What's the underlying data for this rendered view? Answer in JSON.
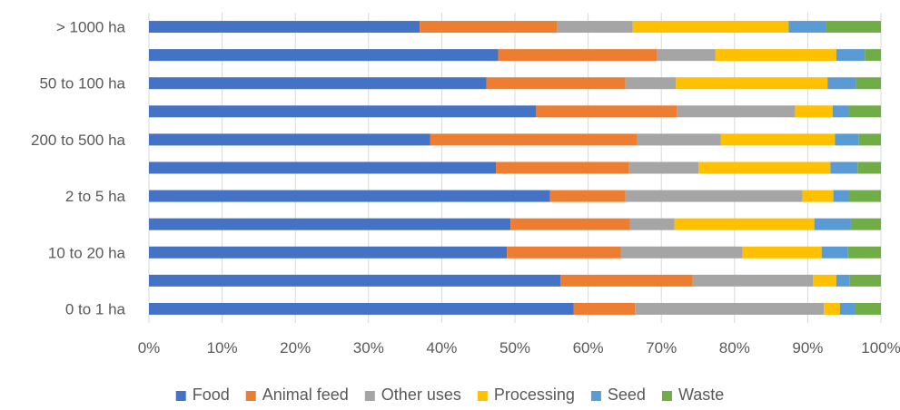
{
  "chart_data": {
    "type": "bar",
    "orientation": "horizontal",
    "stacked": "percent",
    "categories": [
      "0 to 1 ha",
      "",
      "10 to 20 ha",
      "",
      "2 to 5 ha",
      "",
      "200 to 500 ha",
      "",
      "50 to 100 ha",
      "",
      "> 1000 ha"
    ],
    "series": [
      {
        "name": "Food",
        "color": "#4472C4",
        "values": [
          58,
          56.2,
          48.9,
          49.4,
          54.8,
          47.4,
          38.4,
          52.9,
          46.1,
          47.7,
          37
        ]
      },
      {
        "name": "Animal feed",
        "color": "#ED7D31",
        "values": [
          8.4,
          18.1,
          15.6,
          16.3,
          10.3,
          18.2,
          28.3,
          19.2,
          19,
          21.7,
          18.8
        ]
      },
      {
        "name": "Other uses",
        "color": "#A5A5A5",
        "values": [
          25.8,
          16.4,
          16.6,
          6.1,
          24.2,
          9.5,
          11.4,
          16.2,
          6.9,
          8,
          10.3
        ]
      },
      {
        "name": "Processing",
        "color": "#FFC000",
        "values": [
          2.2,
          3.2,
          10.8,
          19.1,
          4.2,
          18,
          15.6,
          5.1,
          20.7,
          16.5,
          21.3
        ]
      },
      {
        "name": "Seed",
        "color": "#5B9BD5",
        "values": [
          2,
          1.8,
          3.6,
          5,
          2.1,
          3.7,
          3.3,
          2.2,
          3.9,
          3.9,
          5.1
        ]
      },
      {
        "name": "Waste",
        "color": "#70AD47",
        "values": [
          3.6,
          4.3,
          4.5,
          4.1,
          4.4,
          3.2,
          3,
          4.4,
          3.4,
          2.2,
          7.5
        ]
      }
    ],
    "x_ticks": [
      "0%",
      "10%",
      "20%",
      "30%",
      "40%",
      "50%",
      "60%",
      "70%",
      "80%",
      "90%",
      "100%"
    ],
    "xlim": [
      0,
      100
    ],
    "grid": "vertical",
    "legend": "bottom"
  }
}
